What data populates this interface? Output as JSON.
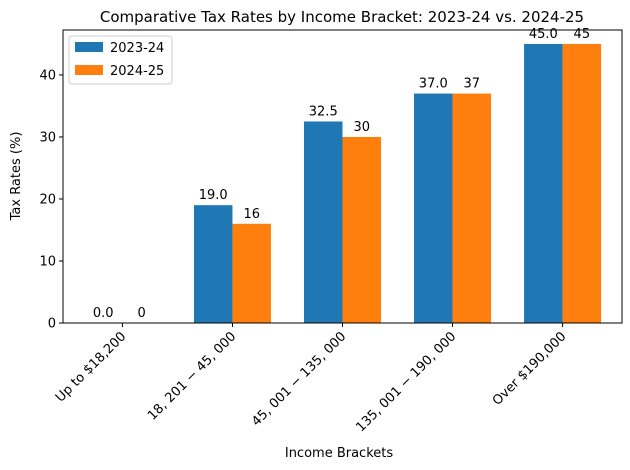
{
  "chart_data": {
    "type": "bar",
    "title": "Comparative Tax Rates by Income Bracket: 2023-24 vs. 2024-25",
    "xlabel": "Income Brackets",
    "ylabel": "Tax Rates (%)",
    "categories": [
      "Up to $18,200",
      "18, 201 − 45, 000",
      "45, 001 − 135, 000",
      "135, 001 − 190, 000",
      "Over $190,000"
    ],
    "series": [
      {
        "name": "2023-24",
        "values": [
          0.0,
          19.0,
          32.5,
          37.0,
          45.0
        ],
        "labels": [
          "0.0",
          "19.0",
          "32.5",
          "37.0",
          "45.0"
        ],
        "color": "#1f77b4"
      },
      {
        "name": "2024-25",
        "values": [
          0,
          16,
          30,
          37,
          45
        ],
        "labels": [
          "0",
          "16",
          "30",
          "37",
          "45"
        ],
        "color": "#ff7f0e"
      }
    ],
    "ylim": [
      0,
      47.25
    ],
    "yticks": [
      "0",
      "10",
      "20",
      "30",
      "40"
    ],
    "grid": false,
    "legend": "top-left"
  }
}
